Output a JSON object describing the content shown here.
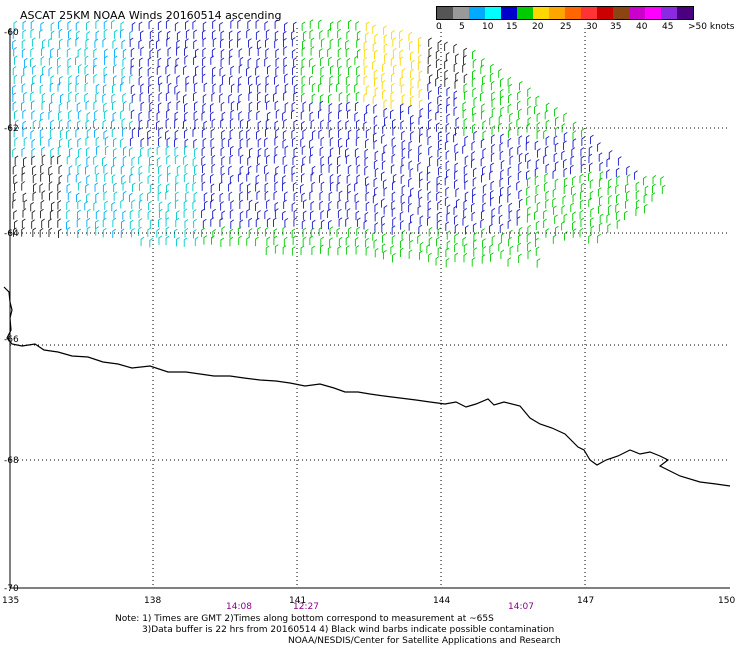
{
  "title": "ASCAT 25KM NOAA Winds 20160514 ascending",
  "colorbar": {
    "colors": [
      "#555555",
      "#999999",
      "#00aaff",
      "#00ffff",
      "#0000cc",
      "#00cc00",
      "#ffd700",
      "#ffa500",
      "#ff6600",
      "#ff3333",
      "#cc0000",
      "#8b4513",
      "#cc00cc",
      "#ff00ff",
      "#8a2be2",
      "#4b0082"
    ],
    "labels": [
      "0",
      "5",
      "10",
      "15",
      "20",
      "25",
      "30",
      "35",
      "40",
      "45",
      ">50 knots"
    ]
  },
  "axes": {
    "x_ticks": [
      "135",
      "138",
      "141",
      "144",
      "147",
      "150"
    ],
    "y_ticks": [
      "-60",
      "-62",
      "-64",
      "-66",
      "-68",
      "-70"
    ]
  },
  "times": [
    "14:08",
    "12:27",
    "14:07"
  ],
  "notes": [
    "Note: 1) Times are GMT 2)Times along bottom correspond to measurement at ~65S",
    "3)Data buffer is 22 hrs from 20160514 4) Black wind barbs indicate possible contamination",
    "NOAA/NESDIS/Center for Satellite Applications and Research"
  ]
}
